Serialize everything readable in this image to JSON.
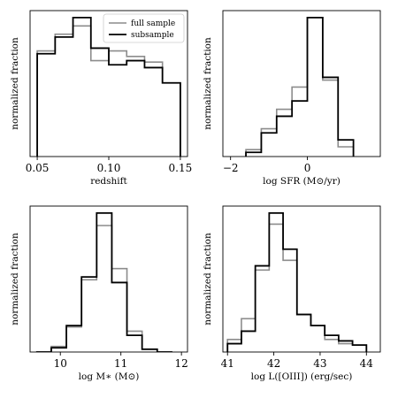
{
  "colors": {
    "full_sample": "#8c8c8c",
    "subsample": "#000000"
  },
  "chart_data": [
    {
      "type": "histogram",
      "xlabel": "redshift",
      "ylabel": "normalized fraction",
      "xlim": [
        0.045,
        0.155
      ],
      "ylim": [
        0,
        1.05
      ],
      "xticks": [
        0.05,
        0.1,
        0.15
      ],
      "xtick_labels": [
        "0.05",
        "0.10",
        "0.15"
      ],
      "y_ticks_shown": false,
      "bin_edges": [
        0.05,
        0.0625,
        0.075,
        0.0875,
        0.1,
        0.1125,
        0.125,
        0.1375,
        0.15
      ],
      "legend": {
        "placement": "top-right"
      },
      "series": [
        {
          "name": "full sample",
          "values": [
            0.76,
            0.88,
            0.94,
            0.69,
            0.76,
            0.72,
            0.68,
            0.53
          ]
        },
        {
          "name": "subsample",
          "values": [
            0.74,
            0.86,
            1.0,
            0.78,
            0.66,
            0.69,
            0.64,
            0.53
          ]
        }
      ]
    },
    {
      "type": "histogram",
      "xlabel": "log SFR (M⊙/yr)",
      "ylabel": "normalized fraction",
      "xlim": [
        -2.2,
        1.9
      ],
      "ylim": [
        0,
        1.05
      ],
      "xticks": [
        -2,
        0
      ],
      "xtick_labels": [
        "−2",
        "0"
      ],
      "y_ticks_shown": false,
      "bin_edges": [
        -1.6,
        -1.2,
        -0.8,
        -0.4,
        0.0,
        0.4,
        0.8,
        1.2
      ],
      "series": [
        {
          "name": "full sample",
          "values": [
            0.05,
            0.2,
            0.34,
            0.5,
            1.0,
            0.55,
            0.07
          ]
        },
        {
          "name": "subsample",
          "values": [
            0.03,
            0.17,
            0.29,
            0.4,
            1.0,
            0.57,
            0.12
          ]
        }
      ]
    },
    {
      "type": "histogram",
      "xlabel": "log M∗ (M⊙)",
      "ylabel": "normalized fraction",
      "xlim": [
        9.5,
        12.1
      ],
      "ylim": [
        0,
        1.05
      ],
      "xticks": [
        10,
        11,
        12
      ],
      "xtick_labels": [
        "10",
        "11",
        "12"
      ],
      "y_ticks_shown": false,
      "bin_edges": [
        9.6,
        9.85,
        10.1,
        10.35,
        10.6,
        10.85,
        11.1,
        11.35,
        11.6,
        11.85
      ],
      "series": [
        {
          "name": "full sample",
          "values": [
            0.0,
            0.04,
            0.18,
            0.52,
            0.91,
            0.6,
            0.15,
            0.02,
            0.0
          ]
        },
        {
          "name": "subsample",
          "values": [
            0.0,
            0.03,
            0.19,
            0.54,
            1.0,
            0.5,
            0.12,
            0.02,
            0.0
          ]
        }
      ]
    },
    {
      "type": "histogram",
      "xlabel": "log L([OIII]) (erg/sec)",
      "ylabel": "normalized fraction",
      "xlim": [
        40.9,
        44.3
      ],
      "ylim": [
        0,
        1.05
      ],
      "xticks": [
        41,
        42,
        43,
        44
      ],
      "xtick_labels": [
        "41",
        "42",
        "43",
        "44"
      ],
      "y_ticks_shown": false,
      "bin_edges": [
        41.0,
        41.3,
        41.6,
        41.9,
        42.2,
        42.5,
        42.8,
        43.1,
        43.4,
        43.7,
        44.0
      ],
      "series": [
        {
          "name": "full sample",
          "values": [
            0.09,
            0.24,
            0.59,
            0.92,
            0.66,
            0.27,
            0.19,
            0.09,
            0.06,
            0.05
          ]
        },
        {
          "name": "subsample",
          "values": [
            0.06,
            0.15,
            0.62,
            1.0,
            0.74,
            0.27,
            0.19,
            0.12,
            0.08,
            0.05
          ]
        }
      ]
    }
  ],
  "legend_labels": [
    "full sample",
    "subsample"
  ]
}
